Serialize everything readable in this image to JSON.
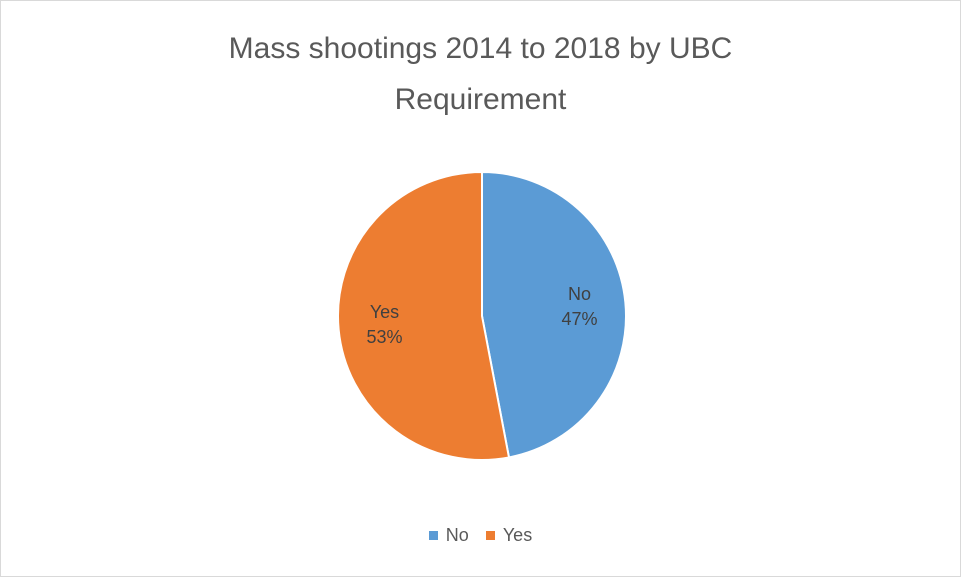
{
  "chart_data": {
    "type": "pie",
    "title": "Mass shootings 2014 to 2018 by UBC Requirement",
    "title_lines": [
      "Mass shootings 2014 to 2018 by UBC",
      "Requirement"
    ],
    "categories": [
      "No",
      "Yes"
    ],
    "values": [
      47,
      53
    ],
    "value_labels": [
      "47%",
      "53%"
    ],
    "colors": [
      "#5b9bd5",
      "#ed7d31"
    ],
    "start_angle_deg": 0,
    "direction": "clockwise",
    "legend_position": "bottom",
    "data_labels": "category and percent, inside"
  }
}
